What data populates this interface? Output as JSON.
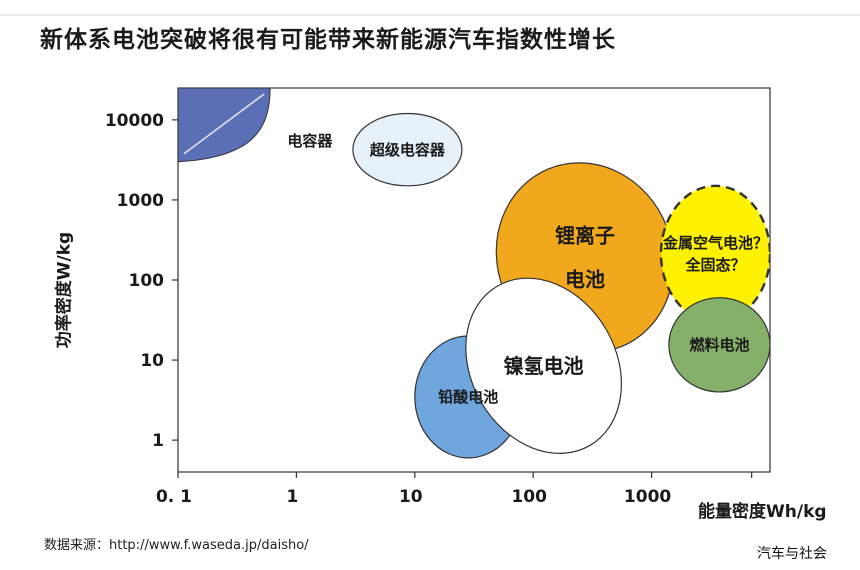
{
  "title": "新体系电池突破将很有可能带来新能源汽车指数性增长",
  "source": "数据来源：http://www.f.waseda.jp/daisho/",
  "watermark": "汽车与社会",
  "colors": {
    "capacitor": "#5b6fb6",
    "supercapacitor": "#e6f1f9",
    "lithium_ion": "#f2a81c",
    "nimh": "#ffffff",
    "lead_acid": "#6ea6dd",
    "metal_air": "#fff200",
    "fuel_cell": "#84b069"
  },
  "chart_data": {
    "type": "scatter",
    "title": "新体系电池突破将很有可能带来新能源汽车指数性增长",
    "xlabel": "能量密度Wh/kg",
    "ylabel": "功率密度W/kg",
    "x_scale": "log",
    "y_scale": "log",
    "xlim": [
      0.1,
      10000
    ],
    "ylim": [
      0.4,
      25000
    ],
    "x_ticks": [
      {
        "value": 0.1,
        "label": "0. 1"
      },
      {
        "value": 1,
        "label": "1"
      },
      {
        "value": 10,
        "label": "10"
      },
      {
        "value": 100,
        "label": "100"
      },
      {
        "value": 1000,
        "label": "1000"
      }
    ],
    "y_ticks": [
      {
        "value": 1,
        "label": "1"
      },
      {
        "value": 10,
        "label": "10"
      },
      {
        "value": 100,
        "label": "100"
      },
      {
        "value": 1000,
        "label": "1000"
      },
      {
        "value": 10000,
        "label": "10000"
      }
    ],
    "grid": false,
    "regions": [
      {
        "name": "电容器",
        "label_lines": [
          "电容器"
        ],
        "shape": "corner",
        "x_range": [
          0.1,
          0.6
        ],
        "y_range": [
          3000,
          25000
        ],
        "fill": "capacitor",
        "label_x": 1.3,
        "label_y": 5500
      },
      {
        "name": "超级电容器",
        "label_lines": [
          "超级电容器"
        ],
        "shape": "ellipse",
        "x_range": [
          3,
          25
        ],
        "y_range": [
          1500,
          12000
        ],
        "rotate": 0,
        "fill": "supercapacitor"
      },
      {
        "name": "锂离子电池",
        "label_lines": [
          "锂离子",
          "电池"
        ],
        "shape": "ellipse",
        "x_range": [
          50,
          1500
        ],
        "y_range": [
          12,
          3000
        ],
        "rotate": -22,
        "fill": "lithium_ion"
      },
      {
        "name": "金属空气电池？全固态？",
        "label_lines": [
          "金属空气电池？",
          "全固态？"
        ],
        "shape": "ellipse",
        "dashed": true,
        "x_range": [
          1200,
          10000
        ],
        "y_range": [
          30,
          1500
        ],
        "rotate": 0,
        "fill": "metal_air"
      },
      {
        "name": "燃料电池",
        "label_lines": [
          "燃料电池"
        ],
        "shape": "ellipse",
        "x_range": [
          1400,
          10000
        ],
        "y_range": [
          4,
          60
        ],
        "rotate": 0,
        "fill": "fuel_cell"
      },
      {
        "name": "铅酸电池",
        "label_lines": [
          "铅酸电池"
        ],
        "shape": "ellipse",
        "x_range": [
          10,
          80
        ],
        "y_range": [
          0.6,
          20
        ],
        "rotate": 0,
        "fill": "lead_acid"
      },
      {
        "name": "镍氢电池",
        "label_lines": [
          "镍氢电池"
        ],
        "shape": "ellipse",
        "x_range": [
          30,
          500
        ],
        "y_range": [
          0.6,
          120
        ],
        "rotate": -30,
        "fill": "nimh"
      }
    ]
  }
}
